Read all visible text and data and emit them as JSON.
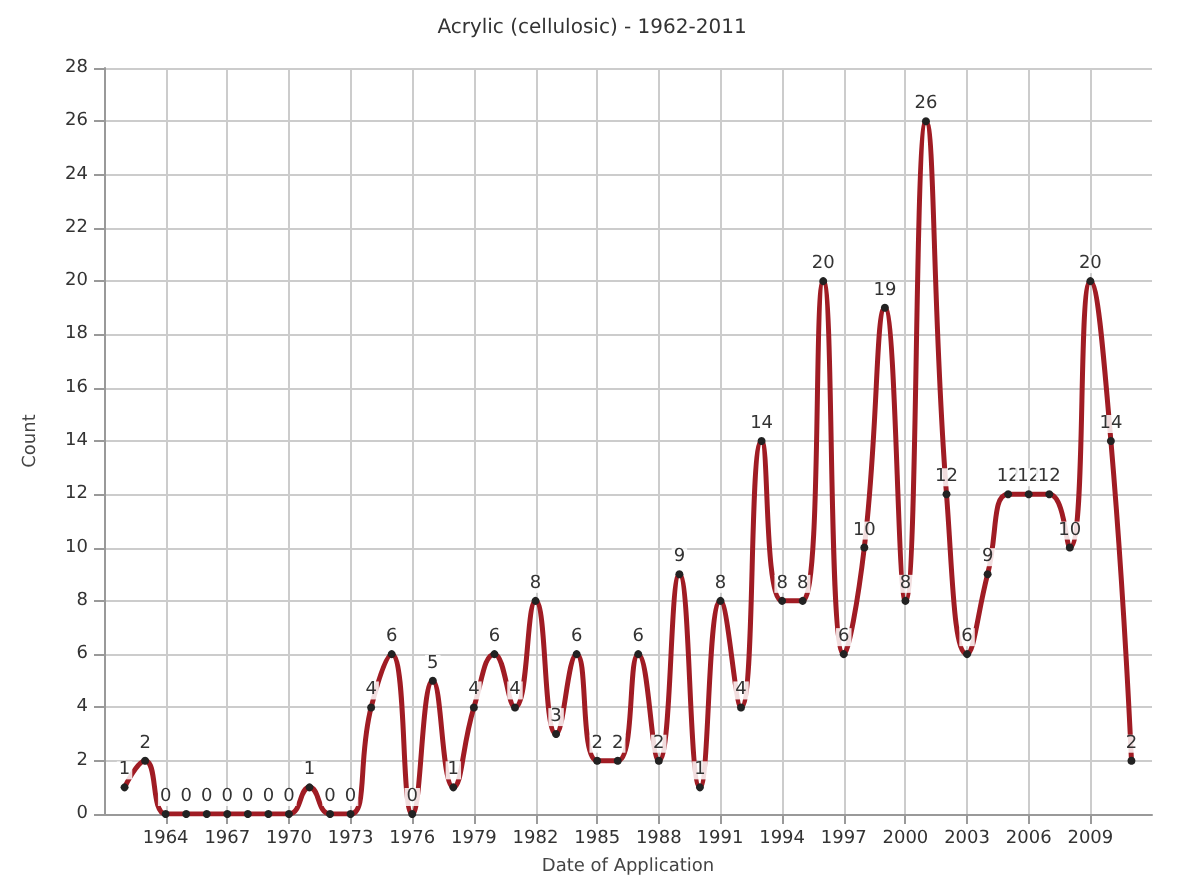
{
  "chart_data": {
    "type": "line",
    "title": "Acrylic (cellulosic) - 1962-2011",
    "xlabel": "Date of Application",
    "ylabel": "Count",
    "x": [
      1962,
      1963,
      1964,
      1965,
      1966,
      1967,
      1968,
      1969,
      1970,
      1971,
      1972,
      1973,
      1974,
      1975,
      1976,
      1977,
      1978,
      1979,
      1980,
      1981,
      1982,
      1983,
      1984,
      1985,
      1986,
      1987,
      1988,
      1989,
      1990,
      1991,
      1992,
      1993,
      1994,
      1995,
      1996,
      1997,
      1998,
      1999,
      2000,
      2001,
      2002,
      2003,
      2004,
      2005,
      2006,
      2007,
      2008,
      2009,
      2010,
      2011
    ],
    "series": [
      {
        "color": "#a01c24",
        "values": [
          1,
          2,
          0,
          0,
          0,
          0,
          0,
          0,
          0,
          1,
          0,
          0,
          4,
          6,
          0,
          5,
          1,
          4,
          6,
          4,
          8,
          3,
          6,
          2,
          2,
          6,
          2,
          9,
          1,
          8,
          4,
          14,
          8,
          8,
          20,
          6,
          10,
          19,
          8,
          26,
          12,
          6,
          9,
          12,
          12,
          12,
          10,
          20,
          14,
          2
        ]
      }
    ],
    "xlim": [
      1961,
      2012
    ],
    "xticks": [
      1964,
      1967,
      1970,
      1973,
      1976,
      1979,
      1982,
      1985,
      1988,
      1991,
      1994,
      1997,
      2000,
      2003,
      2006,
      2009
    ],
    "ylim": [
      0,
      28
    ],
    "yticks": [
      0,
      2,
      4,
      6,
      8,
      10,
      12,
      14,
      16,
      18,
      20,
      22,
      24,
      26,
      28
    ],
    "grid": true,
    "marker": "circle",
    "line_style": "solid",
    "data_labels": true
  }
}
